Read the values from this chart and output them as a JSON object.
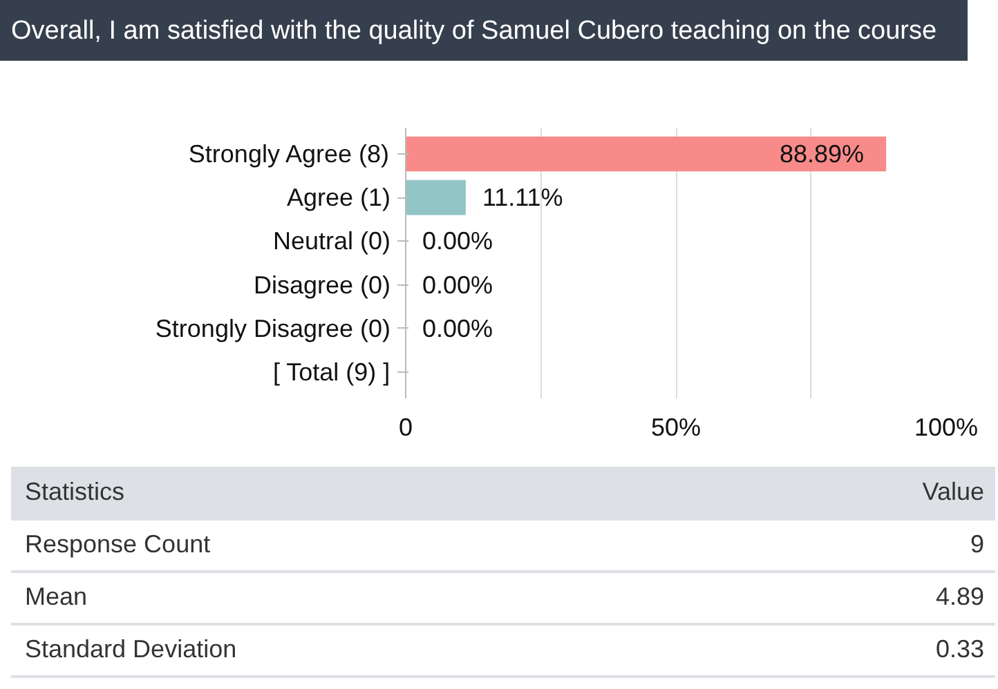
{
  "chart_data": {
    "type": "bar",
    "orientation": "horizontal",
    "title": "Overall, I am satisfied with the quality of Samuel Cubero teaching on the course",
    "categories": [
      "Strongly Agree (8)",
      "Agree (1)",
      "Neutral (0)",
      "Disagree (0)",
      "Strongly Disagree (0)",
      "[ Total (9) ]"
    ],
    "values": [
      88.89,
      11.11,
      0,
      0,
      0,
      null
    ],
    "value_labels": [
      "88.89%",
      "11.11%",
      "0.00%",
      "0.00%",
      "0.00%",
      null
    ],
    "colors": [
      "#f88a8a",
      "#92c5c5",
      "#92c5c5",
      "#92c5c5",
      "#92c5c5",
      "#92c5c5"
    ],
    "xlim": [
      0,
      100
    ],
    "xticks": [
      0,
      {
        "value": 25,
        "label": null
      },
      {
        "value": 50,
        "label": "50%"
      },
      {
        "value": 75,
        "label": null
      },
      {
        "value": 100,
        "label": "100%"
      }
    ],
    "grid": "x",
    "annotations": [
      "Statistics",
      "Value",
      "Response Count",
      "9",
      "Mean",
      "4.89",
      "Standard Deviation",
      "0.33"
    ]
  }
}
